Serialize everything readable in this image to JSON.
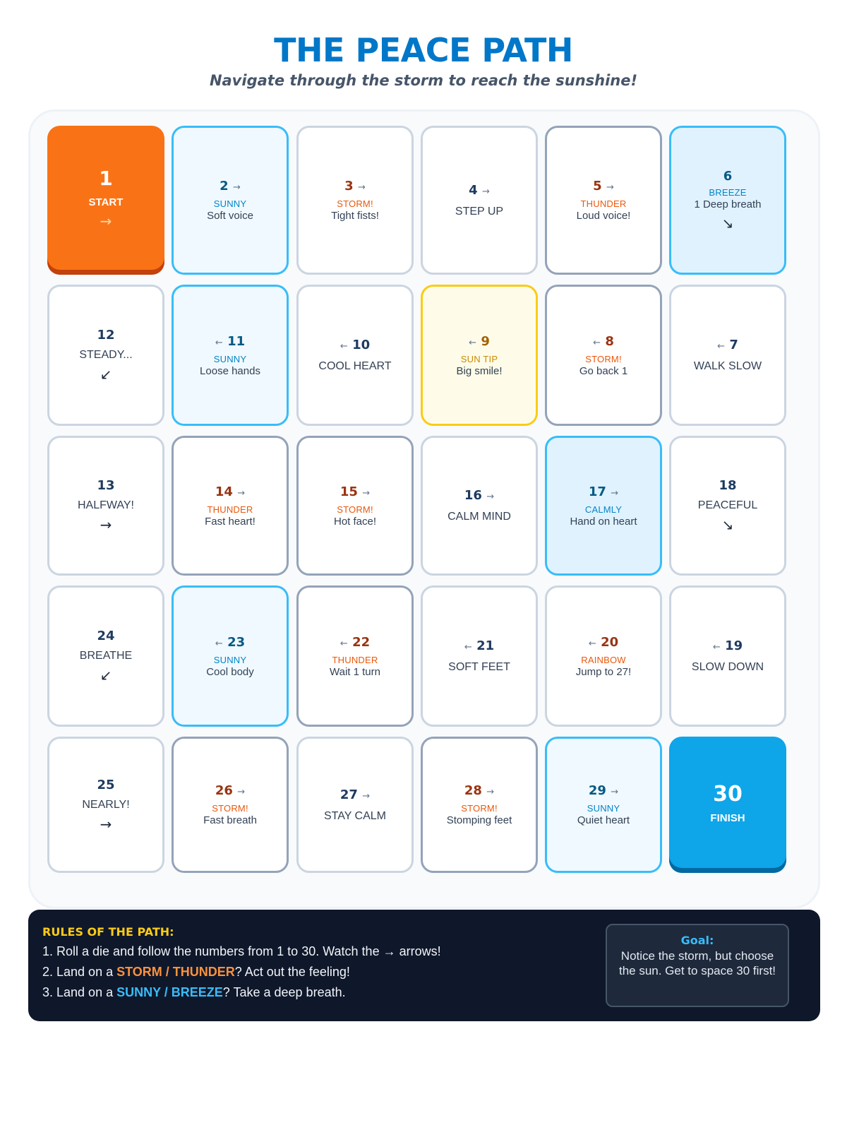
{
  "header": {
    "title": "THE PEACE PATH",
    "subtitle": "Navigate through the storm to reach the sunshine!"
  },
  "board": {
    "tiles": [
      {
        "num": "1",
        "label": "START",
        "dir": "→",
        "type": "start"
      },
      {
        "num": "2",
        "arrow": "→",
        "cat": "SUNNY",
        "act": "Soft voice",
        "type": "sunny"
      },
      {
        "num": "3",
        "arrow": "→",
        "cat": "STORM!",
        "act": "Tight fists!",
        "type": "plain-storm"
      },
      {
        "num": "4",
        "arrow": "→",
        "label": "STEP UP",
        "type": "plain"
      },
      {
        "num": "5",
        "arrow": "→",
        "cat": "THUNDER",
        "act": "Loud voice!",
        "type": "storm"
      },
      {
        "num": "6",
        "cat": "BREEZE",
        "act": "1 Deep breath",
        "dir": "↘",
        "type": "breeze"
      },
      {
        "num": "12",
        "label": "STEADY...",
        "dir": "↙",
        "type": "plain"
      },
      {
        "num": "11",
        "arrowLeft": "←",
        "cat": "SUNNY",
        "act": "Loose hands",
        "type": "sunny"
      },
      {
        "num": "10",
        "arrowLeft": "←",
        "label": "COOL HEART",
        "type": "plain"
      },
      {
        "num": "9",
        "arrowLeft": "←",
        "cat": "SUN TIP",
        "act": "Big smile!",
        "type": "sun-tip"
      },
      {
        "num": "8",
        "arrowLeft": "←",
        "cat": "STORM!",
        "act": "Go back 1",
        "type": "storm"
      },
      {
        "num": "7",
        "arrowLeft": "←",
        "label": "WALK SLOW",
        "type": "plain"
      },
      {
        "num": "13",
        "label": "HALFWAY!",
        "dir": "→",
        "type": "plain"
      },
      {
        "num": "14",
        "arrow": "→",
        "cat": "THUNDER",
        "act": "Fast heart!",
        "type": "storm"
      },
      {
        "num": "15",
        "arrow": "→",
        "cat": "STORM!",
        "act": "Hot face!",
        "type": "storm"
      },
      {
        "num": "16",
        "arrow": "→",
        "label": "CALM MIND",
        "type": "plain"
      },
      {
        "num": "17",
        "arrow": "→",
        "cat": "CALMLY",
        "act": "Hand on heart",
        "type": "breeze"
      },
      {
        "num": "18",
        "label": "PEACEFUL",
        "dir": "↘",
        "type": "plain"
      },
      {
        "num": "24",
        "label": "BREATHE",
        "dir": "↙",
        "type": "plain"
      },
      {
        "num": "23",
        "arrowLeft": "←",
        "cat": "SUNNY",
        "act": "Cool body",
        "type": "sunny"
      },
      {
        "num": "22",
        "arrowLeft": "←",
        "cat": "THUNDER",
        "act": "Wait 1 turn",
        "type": "storm"
      },
      {
        "num": "21",
        "arrowLeft": "←",
        "label": "SOFT FEET",
        "type": "plain"
      },
      {
        "num": "20",
        "arrowLeft": "←",
        "cat": "RAINBOW",
        "act": "Jump to 27!",
        "type": "rainbow"
      },
      {
        "num": "19",
        "arrowLeft": "←",
        "label": "SLOW DOWN",
        "type": "plain"
      },
      {
        "num": "25",
        "label": "NEARLY!",
        "dir": "→",
        "type": "plain"
      },
      {
        "num": "26",
        "arrow": "→",
        "cat": "STORM!",
        "act": "Fast breath",
        "type": "storm"
      },
      {
        "num": "27",
        "arrow": "→",
        "label": "STAY CALM",
        "type": "plain"
      },
      {
        "num": "28",
        "arrow": "→",
        "cat": "STORM!",
        "act": "Stomping feet",
        "type": "storm"
      },
      {
        "num": "29",
        "arrow": "→",
        "cat": "SUNNY",
        "act": "Quiet heart",
        "type": "sunny"
      },
      {
        "num": "30",
        "label": "FINISH",
        "type": "finish"
      }
    ]
  },
  "rules": {
    "title": "RULES OF THE PATH:",
    "rule1": "1. Roll a die and follow the numbers from 1 to 30. Watch the → arrows!",
    "rule2_prefix": "2. Land on a ",
    "rule2_highlight": "STORM / THUNDER",
    "rule2_suffix": "? Act out the feeling!",
    "rule3_prefix": "3. Land on a ",
    "rule3_highlight": "SUNNY / BREEZE",
    "rule3_suffix": "? Take a deep breath.",
    "goal_title": "Goal:",
    "goal_text": "Notice the storm, but choose the sun. Get to space 30 first!"
  },
  "colors": {
    "title": "#0077c8",
    "start": "#f97316",
    "finish": "#0ea5e9",
    "sunny_border": "#38bdf8",
    "storm_text": "#ea580c",
    "sun_tip_border": "#facc15",
    "rules_bg": "#0f172a"
  }
}
